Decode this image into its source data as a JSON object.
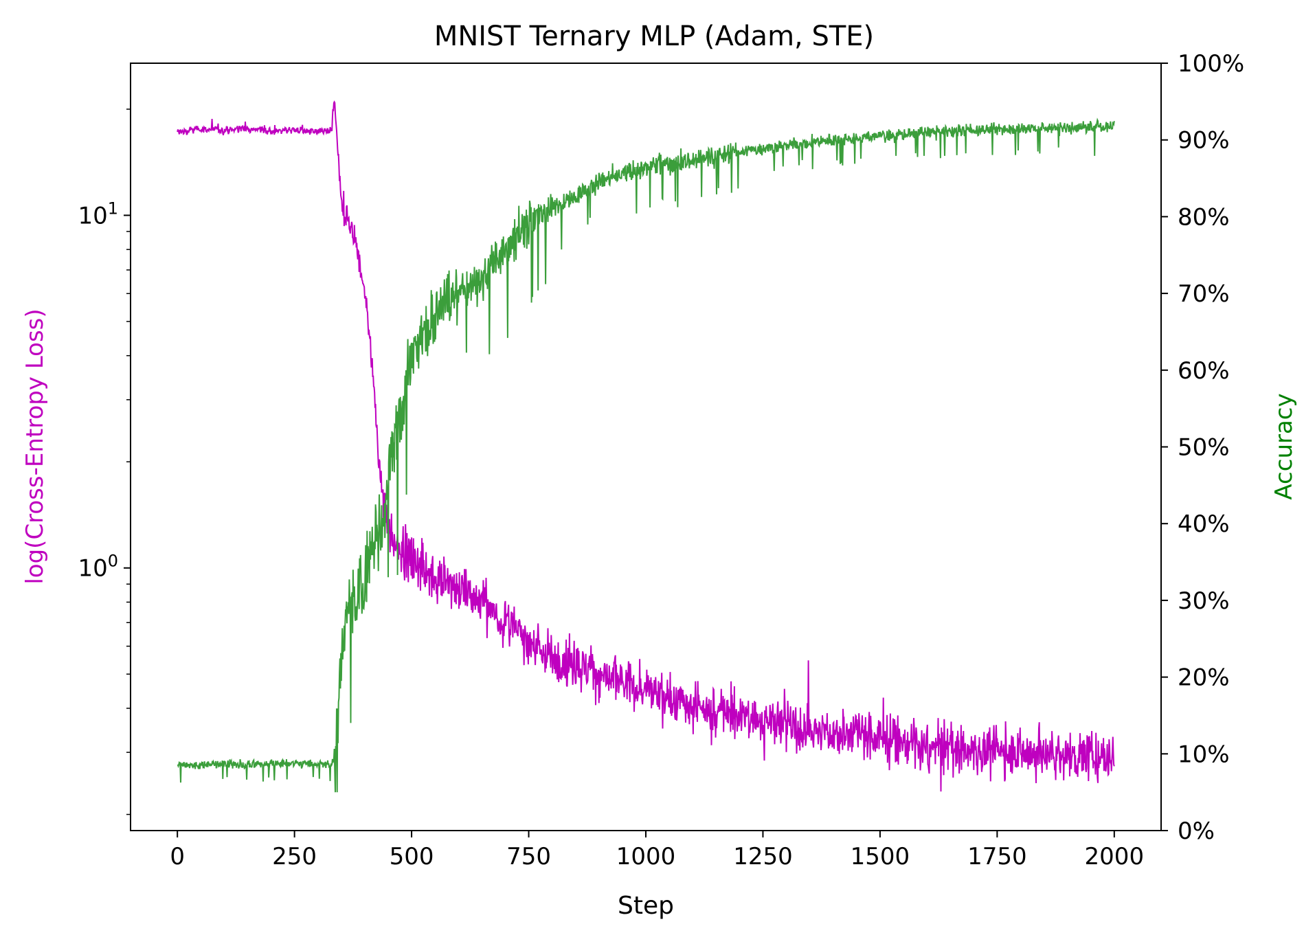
{
  "chart_data": {
    "type": "line",
    "title": "MNIST Ternary MLP (Adam, STE)",
    "xlabel": "Step",
    "ylabel_left": "log(Cross-Entropy Loss)",
    "ylabel_right": "Accuracy",
    "xlim": [
      -100,
      2100
    ],
    "x_ticks": [
      0,
      250,
      500,
      750,
      1000,
      1250,
      1500,
      1750,
      2000
    ],
    "x_tick_labels": [
      "0",
      "250",
      "500",
      "750",
      "1000",
      "1250",
      "1500",
      "1750",
      "2000"
    ],
    "y_left_scale": "log",
    "y_left_lim": [
      0.18,
      27
    ],
    "y_left_major_ticks": [
      1,
      10
    ],
    "y_left_tick_base": "10",
    "y_left_tick_exponents": [
      "0",
      "1"
    ],
    "y_right_lim": [
      0,
      1
    ],
    "y_right_ticks": [
      0,
      0.1,
      0.2,
      0.3,
      0.4,
      0.5,
      0.6,
      0.7,
      0.8,
      0.9,
      1.0
    ],
    "y_right_tick_labels": [
      "0%",
      "10%",
      "20%",
      "30%",
      "40%",
      "50%",
      "60%",
      "70%",
      "80%",
      "90%",
      "100%"
    ],
    "grid": false,
    "series": [
      {
        "axis": "left",
        "color": "#bf00bf",
        "x": [
          0,
          50,
          100,
          150,
          200,
          250,
          300,
          330,
          335,
          340,
          350,
          360,
          380,
          400,
          410,
          420,
          430,
          440,
          450,
          470,
          500,
          550,
          600,
          650,
          700,
          750,
          800,
          900,
          1000,
          1100,
          1200,
          1300,
          1400,
          1500,
          1550,
          1600,
          1700,
          1800,
          1900,
          2000
        ],
        "y": [
          17.2,
          17.6,
          17.4,
          17.7,
          17.3,
          17.5,
          17.2,
          17.4,
          22.5,
          16.5,
          11.0,
          10.0,
          8.6,
          6.0,
          4.6,
          3.2,
          2.0,
          1.55,
          1.3,
          1.18,
          1.05,
          0.95,
          0.88,
          0.8,
          0.7,
          0.62,
          0.56,
          0.5,
          0.45,
          0.4,
          0.38,
          0.36,
          0.34,
          0.33,
          0.32,
          0.31,
          0.305,
          0.3,
          0.295,
          0.29
        ]
      },
      {
        "axis": "right",
        "color": "#3b9e3b",
        "x": [
          0,
          50,
          100,
          150,
          200,
          250,
          300,
          330,
          340,
          350,
          360,
          380,
          400,
          420,
          440,
          450,
          470,
          500,
          550,
          600,
          650,
          700,
          750,
          800,
          900,
          1000,
          1100,
          1200,
          1300,
          1400,
          1500,
          1600,
          1700,
          1800,
          1900,
          2000
        ],
        "y": [
          0.085,
          0.085,
          0.088,
          0.085,
          0.087,
          0.088,
          0.086,
          0.085,
          0.11,
          0.22,
          0.28,
          0.3,
          0.33,
          0.38,
          0.4,
          0.47,
          0.53,
          0.62,
          0.67,
          0.7,
          0.72,
          0.76,
          0.79,
          0.81,
          0.845,
          0.865,
          0.875,
          0.885,
          0.893,
          0.9,
          0.905,
          0.91,
          0.913,
          0.915,
          0.916,
          0.918
        ]
      }
    ]
  }
}
